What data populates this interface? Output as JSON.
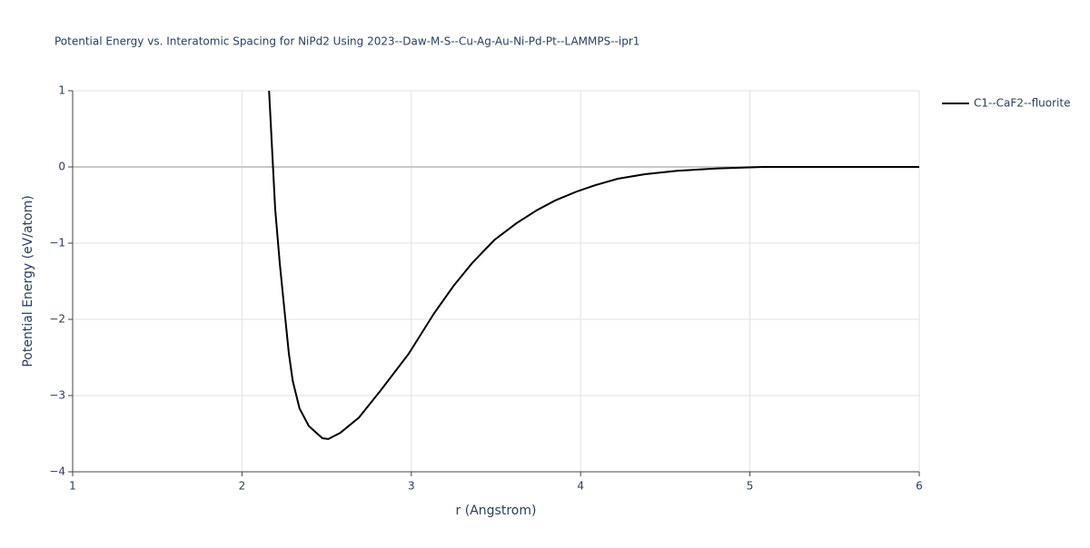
{
  "chart_data": {
    "type": "line",
    "title": "Potential Energy vs. Interatomic Spacing for NiPd2 Using 2023--Daw-M-S--Cu-Ag-Au-Ni-Pd-Pt--LAMMPS--ipr1",
    "x_label": "r (Angstrom)",
    "y_label": "Potential Energy (eV/atom)",
    "x": [
      2.16,
      2.196,
      2.223,
      2.25,
      2.277,
      2.3,
      2.34,
      2.395,
      2.475,
      2.51,
      2.58,
      2.69,
      2.82,
      2.985,
      3.135,
      3.25,
      3.36,
      3.49,
      3.62,
      3.74,
      3.85,
      3.98,
      4.085,
      4.22,
      4.38,
      4.57,
      4.81,
      5.08,
      6
    ],
    "series": [
      {
        "name": "C1--CaF2--fluorite",
        "color": "#000000",
        "values": [
          1.0,
          -0.55,
          -1.26,
          -1.86,
          -2.45,
          -2.81,
          -3.17,
          -3.4,
          -3.56,
          -3.57,
          -3.49,
          -3.29,
          -2.93,
          -2.45,
          -1.92,
          -1.56,
          -1.26,
          -0.96,
          -0.74,
          -0.57,
          -0.44,
          -0.32,
          -0.24,
          -0.155,
          -0.095,
          -0.05,
          -0.02,
          0,
          0
        ]
      }
    ],
    "xlim": [
      1,
      6
    ],
    "xticks": [
      1,
      2,
      3,
      4,
      5,
      6
    ],
    "ylim": [
      -4,
      1
    ],
    "yticks": [
      {
        "value": -4,
        "label": "−4"
      },
      {
        "value": -3,
        "label": "−3"
      },
      {
        "value": -2,
        "label": "−2"
      },
      {
        "value": -1,
        "label": "−1"
      },
      0,
      1
    ],
    "grid": true,
    "legend_position": "right"
  }
}
